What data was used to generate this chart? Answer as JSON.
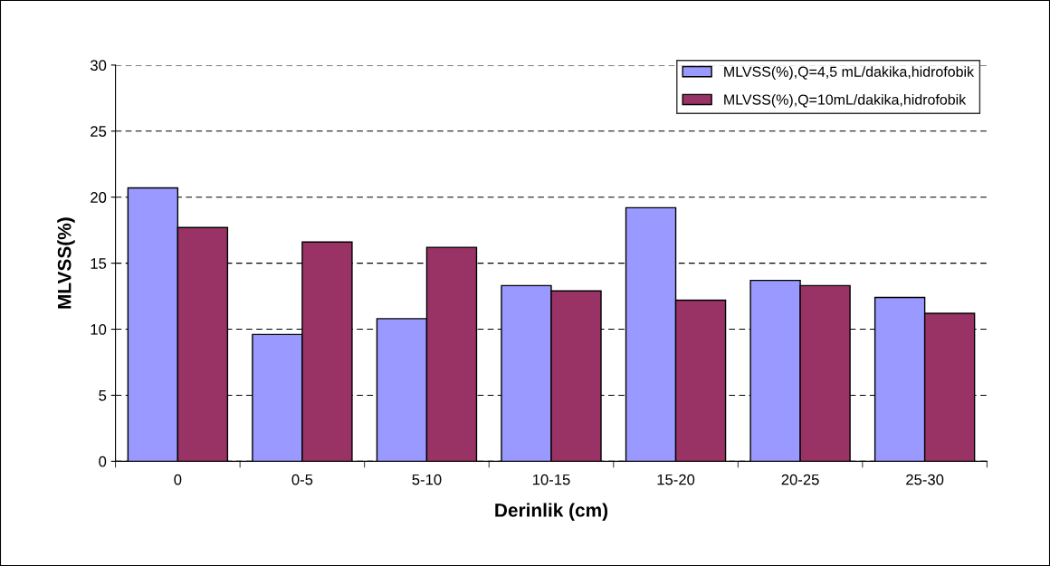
{
  "chart_data": {
    "type": "bar",
    "xlabel": "Derinlik (cm)",
    "ylabel": "MLVSS(%)",
    "categories": [
      "0",
      "0-5",
      "5-10",
      "10-15",
      "15-20",
      "20-25",
      "25-30"
    ],
    "series": [
      {
        "name": "MLVSS(%),Q=4,5 mL/dakika,hidrofobik",
        "color": "#9999ff",
        "values": [
          20.7,
          9.6,
          10.8,
          13.3,
          19.2,
          13.7,
          12.4
        ]
      },
      {
        "name": "MLVSS(%),Q=10mL/dakika,hidrofobik",
        "color": "#993366",
        "values": [
          17.7,
          16.6,
          16.2,
          12.9,
          12.2,
          13.3,
          11.2
        ]
      }
    ],
    "ylim": [
      0,
      30
    ],
    "yticks": [
      0,
      5,
      10,
      15,
      20,
      25,
      30
    ],
    "grid": "y",
    "legend": "top right"
  }
}
